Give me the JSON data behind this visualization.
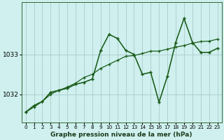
{
  "background_color": "#cff0ee",
  "grid_color": "#aacccc",
  "line_color": "#1a5c1a",
  "xlabel": "Graphe pression niveau de la mer (hPa)",
  "xlim": [
    -0.5,
    23.5
  ],
  "ylim": [
    1031.3,
    1034.3
  ],
  "yticks": [
    1032,
    1033
  ],
  "xticks": [
    0,
    1,
    2,
    3,
    4,
    5,
    6,
    7,
    8,
    9,
    10,
    11,
    12,
    13,
    14,
    15,
    16,
    17,
    18,
    19,
    20,
    21,
    22,
    23
  ],
  "s1_x": [
    0,
    1,
    2,
    3,
    4,
    5,
    6,
    7,
    8,
    9,
    10,
    11,
    12,
    13,
    14,
    15,
    16,
    17,
    18,
    19,
    20,
    21,
    22,
    23
  ],
  "s1_y": [
    1031.55,
    1031.72,
    1031.82,
    1032.05,
    1032.1,
    1032.15,
    1032.25,
    1032.3,
    1032.38,
    1033.1,
    1033.5,
    1033.4,
    1033.1,
    1033.0,
    1032.5,
    1032.55,
    1031.8,
    1032.45,
    1033.3,
    1033.9,
    1033.3,
    1033.05,
    1033.05,
    1033.15
  ],
  "s2_x": [
    0,
    1,
    2,
    3,
    4,
    5,
    6,
    7,
    8,
    9,
    10,
    11,
    12,
    13,
    14,
    15,
    16,
    17,
    18,
    19,
    20,
    21,
    22,
    23
  ],
  "s2_y": [
    1031.55,
    1031.68,
    1031.82,
    1032.0,
    1032.1,
    1032.18,
    1032.28,
    1032.42,
    1032.5,
    1032.65,
    1032.75,
    1032.85,
    1032.95,
    1032.97,
    1033.02,
    1033.08,
    1033.08,
    1033.13,
    1033.18,
    1033.22,
    1033.28,
    1033.32,
    1033.33,
    1033.38
  ],
  "s3_x": [
    0,
    1,
    2,
    3,
    4,
    5,
    6,
    7,
    8,
    9,
    10,
    11,
    12,
    13,
    14,
    15,
    16,
    17,
    18,
    19,
    20,
    21,
    22,
    23
  ],
  "s3_y": [
    1031.55,
    1031.72,
    1031.82,
    1032.05,
    1032.1,
    1032.15,
    1032.25,
    1032.3,
    1032.38,
    1033.1,
    1033.5,
    1033.4,
    1033.1,
    1033.0,
    1032.5,
    1032.55,
    1031.8,
    1032.45,
    1033.3,
    1033.9,
    1033.3,
    1033.05,
    1033.05,
    1033.15
  ]
}
